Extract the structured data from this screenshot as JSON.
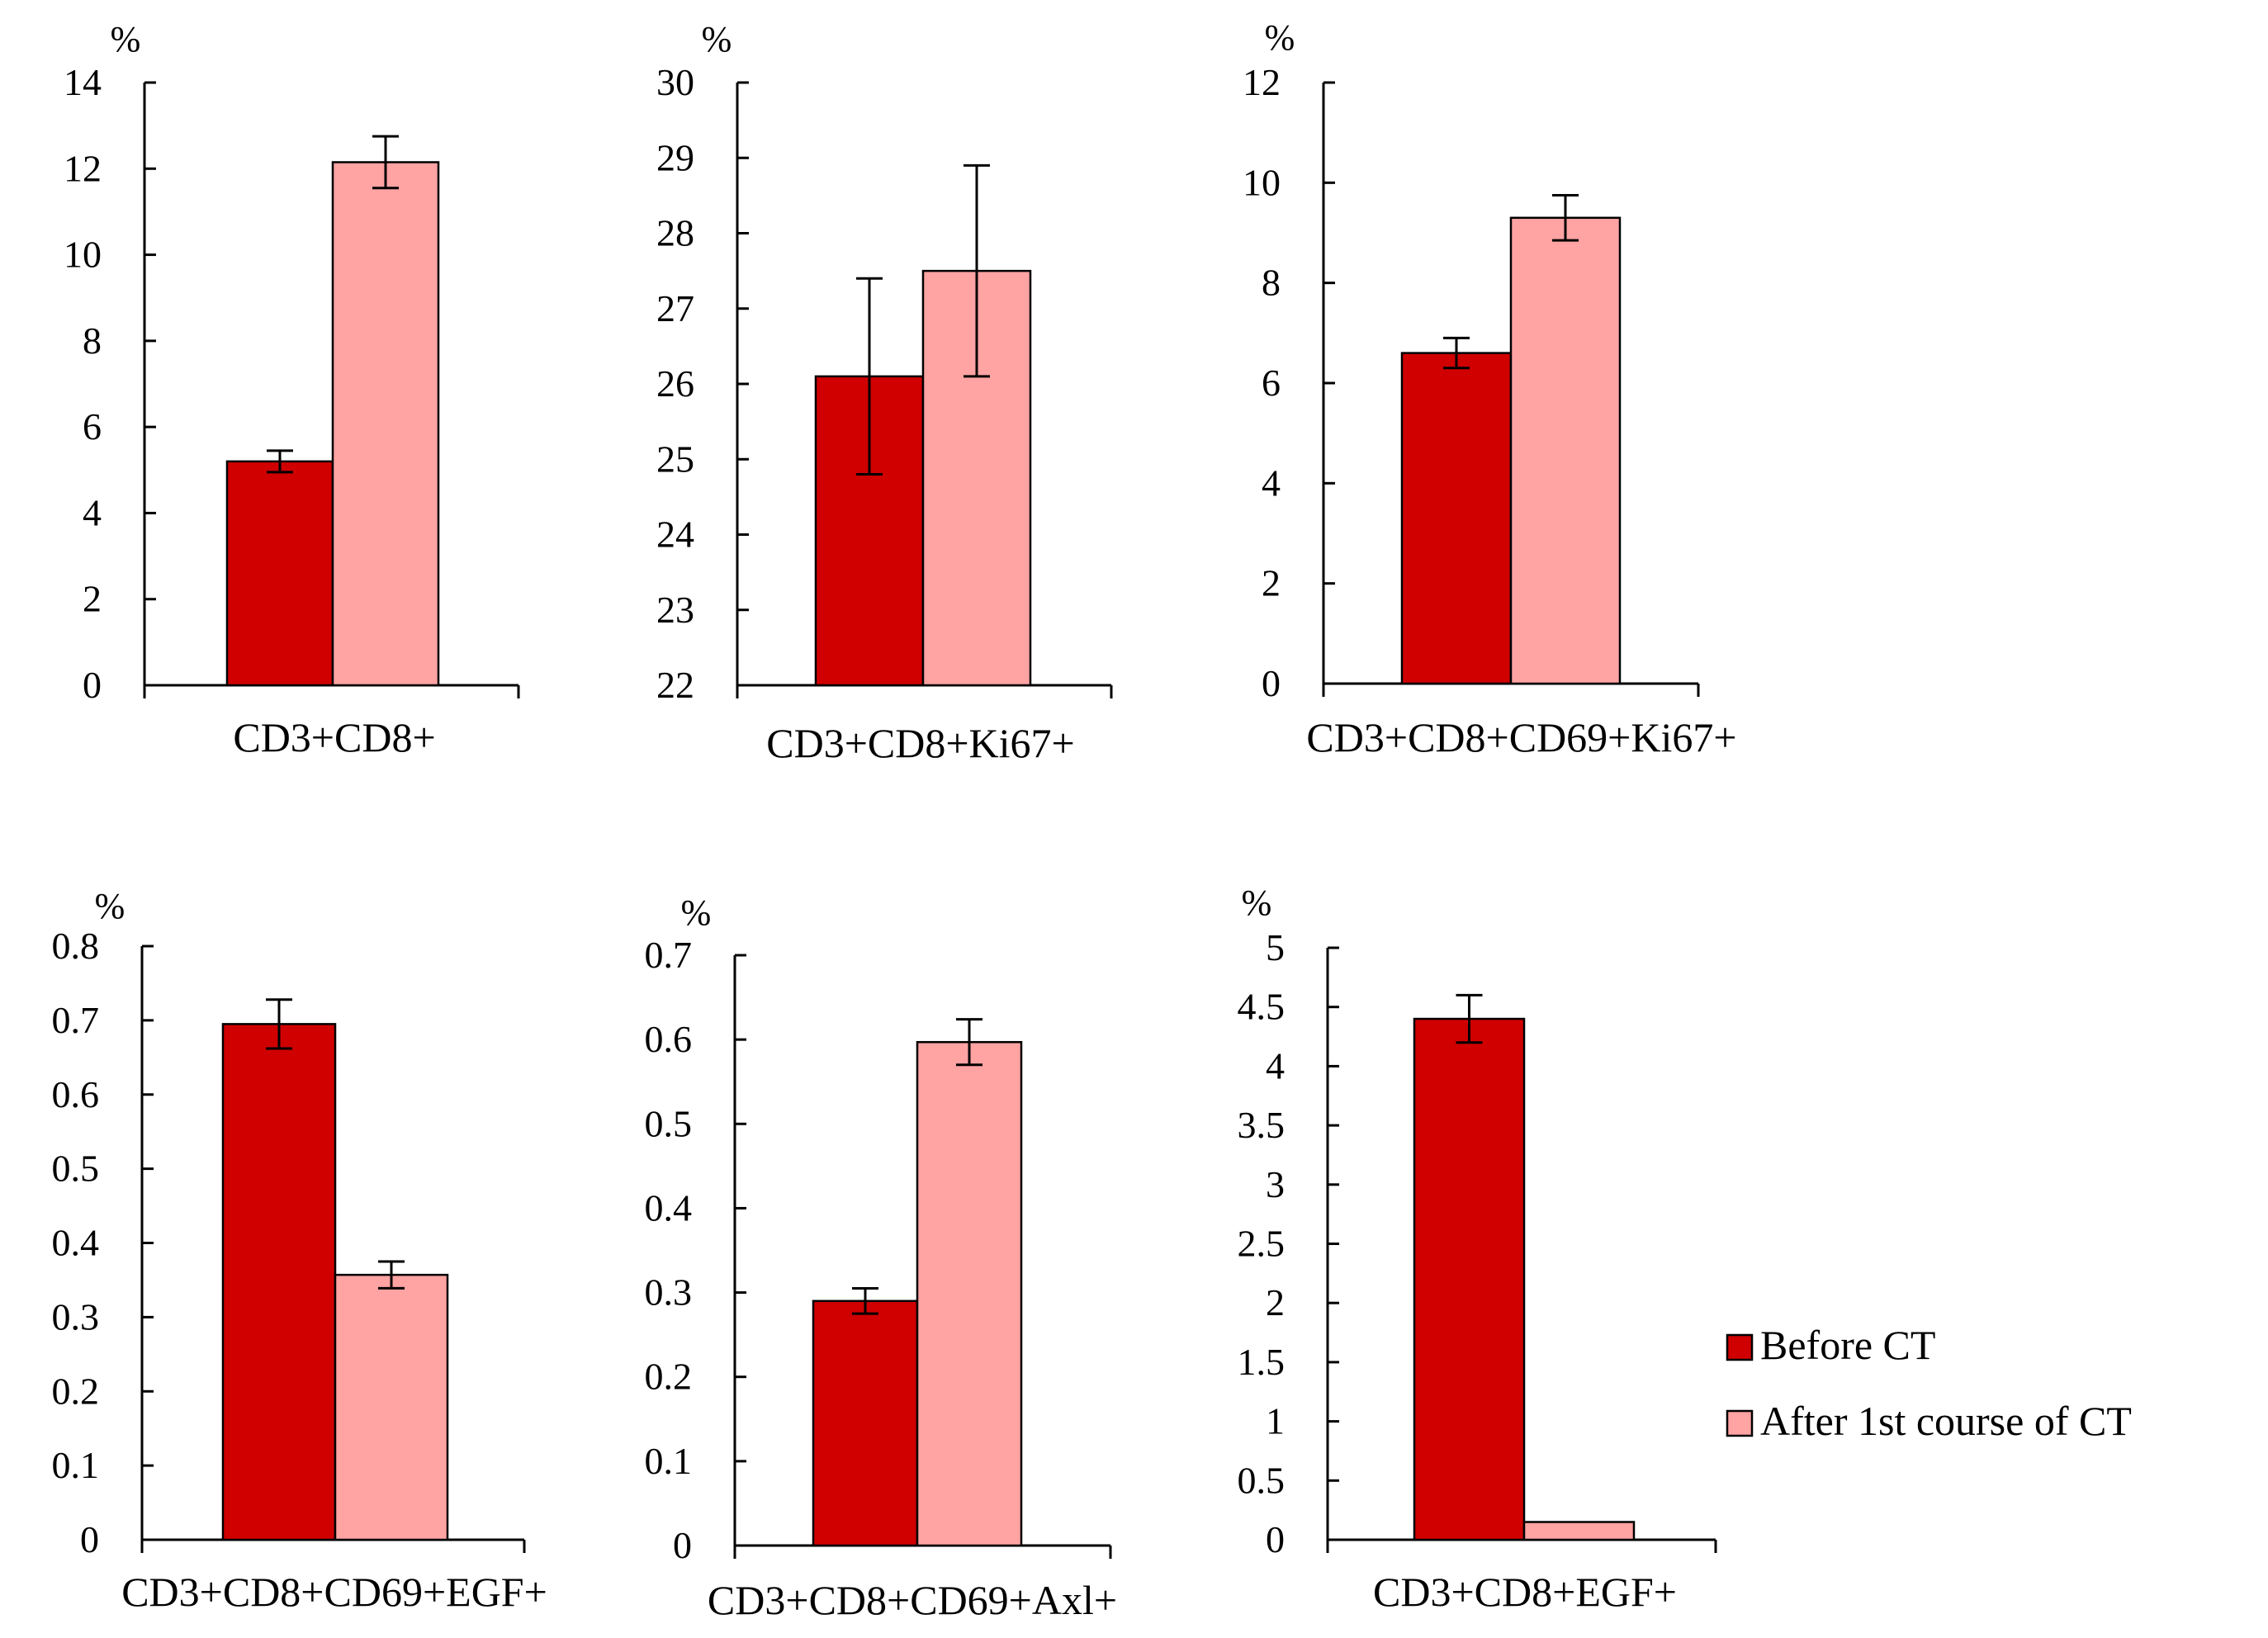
{
  "legend": {
    "items": [
      {
        "label": "Before CT",
        "color": "#d00000"
      },
      {
        "label": "After 1st course of  CT",
        "color": "#ffa3a3"
      }
    ]
  },
  "chart_data": [
    {
      "type": "bar",
      "unit_label": "%",
      "categories": [
        "CD3+CD8+"
      ],
      "series": [
        {
          "name": "Before CT",
          "values": [
            5.2
          ],
          "errors": [
            0.25
          ]
        },
        {
          "name": "After 1st course of  CT",
          "values": [
            12.15
          ],
          "errors": [
            0.6
          ]
        }
      ],
      "ylim": [
        0,
        14
      ],
      "yticks": [
        0,
        2,
        4,
        6,
        8,
        10,
        12,
        14
      ],
      "ytick_labels": [
        "0",
        "2",
        "4",
        "6",
        "8",
        "10",
        "12",
        "14"
      ]
    },
    {
      "type": "bar",
      "unit_label": "%",
      "categories": [
        "CD3+CD8+Ki67+"
      ],
      "series": [
        {
          "name": "Before CT",
          "values": [
            26.1
          ],
          "errors": [
            1.3
          ]
        },
        {
          "name": "After 1st course of  CT",
          "values": [
            27.5
          ],
          "errors": [
            1.4
          ]
        }
      ],
      "ylim": [
        22,
        30
      ],
      "yticks": [
        22,
        23,
        24,
        25,
        26,
        27,
        28,
        29,
        30
      ],
      "ytick_labels": [
        "22",
        "23",
        "24",
        "25",
        "26",
        "27",
        "28",
        "29",
        "30"
      ]
    },
    {
      "type": "bar",
      "unit_label": "%",
      "categories": [
        "CD3+CD8+CD69+Ki67+"
      ],
      "series": [
        {
          "name": "Before CT",
          "values": [
            6.6
          ],
          "errors": [
            0.3
          ]
        },
        {
          "name": "After 1st course of  CT",
          "values": [
            9.3
          ],
          "errors": [
            0.45
          ]
        }
      ],
      "ylim": [
        0,
        12
      ],
      "yticks": [
        0,
        2,
        4,
        6,
        8,
        10,
        12
      ],
      "ytick_labels": [
        "0",
        "2",
        "4",
        "6",
        "8",
        "10",
        "12"
      ]
    },
    {
      "type": "bar",
      "unit_label": "%",
      "categories": [
        "CD3+CD8+CD69+EGF+"
      ],
      "series": [
        {
          "name": "Before CT",
          "values": [
            0.695
          ],
          "errors": [
            0.033
          ]
        },
        {
          "name": "After 1st course of  CT",
          "values": [
            0.357
          ],
          "errors": [
            0.018
          ]
        }
      ],
      "ylim": [
        0,
        0.8
      ],
      "yticks": [
        0,
        0.1,
        0.2,
        0.3,
        0.4,
        0.5,
        0.6,
        0.7,
        0.8
      ],
      "ytick_labels": [
        "0",
        "0.1",
        "0.2",
        "0.3",
        "0.4",
        "0.5",
        "0.6",
        "0.7",
        "0.8"
      ]
    },
    {
      "type": "bar",
      "unit_label": "%",
      "categories": [
        "CD3+CD8+CD69+Axl+"
      ],
      "series": [
        {
          "name": "Before CT",
          "values": [
            0.29
          ],
          "errors": [
            0.015
          ]
        },
        {
          "name": "After 1st course of  CT",
          "values": [
            0.597
          ],
          "errors": [
            0.027
          ]
        }
      ],
      "ylim": [
        0,
        0.7
      ],
      "yticks": [
        0,
        0.1,
        0.2,
        0.3,
        0.4,
        0.5,
        0.6,
        0.7
      ],
      "ytick_labels": [
        "0",
        "0.1",
        "0.2",
        "0.3",
        "0.4",
        "0.5",
        "0.6",
        "0.7"
      ]
    },
    {
      "type": "bar",
      "unit_label": "%",
      "categories": [
        "CD3+CD8+EGF+"
      ],
      "series": [
        {
          "name": "Before CT",
          "values": [
            4.4
          ],
          "errors": [
            0.2
          ]
        },
        {
          "name": "After 1st course of  CT",
          "values": [
            0.15
          ],
          "errors": [
            0
          ]
        }
      ],
      "ylim": [
        0,
        5
      ],
      "yticks": [
        0,
        0.5,
        1,
        1.5,
        2,
        2.5,
        3,
        3.5,
        4,
        4.5,
        5
      ],
      "ytick_labels": [
        "0",
        "0.5",
        "1",
        "1.5",
        "2",
        "2.5",
        "3",
        "3.5",
        "4",
        "4.5",
        "5"
      ]
    }
  ]
}
